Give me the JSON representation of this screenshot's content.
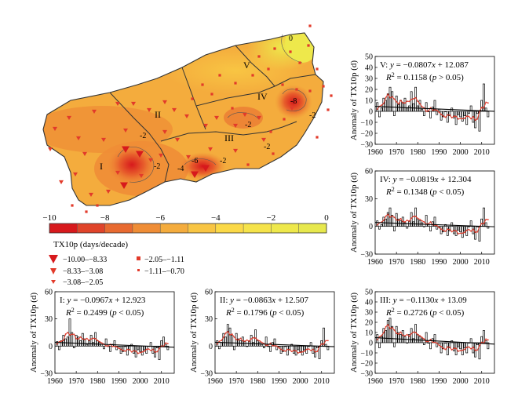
{
  "map": {
    "region_labels": [
      "I",
      "II",
      "III",
      "IV",
      "V"
    ],
    "contour_labels": [
      "0",
      "-2",
      "-2",
      "-2",
      "-2",
      "-2",
      "-4",
      "-6",
      "-8",
      "-2"
    ]
  },
  "colorbar": {
    "ticks": [
      "−10",
      "−8",
      "−6",
      "−4",
      "−2",
      "0"
    ],
    "label": "TX10p (days/decade)",
    "colors": [
      "#d7191c",
      "#e0442a",
      "#e86a30",
      "#ef8d36",
      "#f4ac3d",
      "#f8c543",
      "#fbd947",
      "#f5e34a",
      "#eee84b",
      "#e7e84d"
    ]
  },
  "legend": {
    "items": [
      {
        "label": "−10.00–−8.33",
        "marker": "triangle-large-icon"
      },
      {
        "label": "−2.05–−1.11",
        "marker": "square-large-icon"
      },
      {
        "label": "−8.33–−3.08",
        "marker": "triangle-medium-icon"
      },
      {
        "label": "−1.11–−0.70",
        "marker": "square-small-icon"
      },
      {
        "label": "−3.08–−2.05",
        "marker": "triangle-small-icon"
      }
    ]
  },
  "colors": {
    "bar_stroke": "#000000",
    "trend": "#000000",
    "smooth": "#e23a2a",
    "station": "#e23a2a"
  },
  "chart_data": [
    {
      "id": "V",
      "type": "bar",
      "ylabel": "Anomaly of TX10p (d)",
      "equation": "V: y = −0.0807x + 12.087",
      "r2": "R² = 0.1158 (p > 0.05)",
      "eq_parts": [
        "V: ",
        "y",
        " = −0.0807",
        "x",
        " + 12.087"
      ],
      "r2_parts": [
        "R",
        "2",
        " = 0.1158 (",
        "p",
        " > 0.05)"
      ],
      "yticks": [
        "−30",
        "−20",
        "−10",
        "0",
        "10",
        "20",
        "30",
        "40",
        "50"
      ],
      "ytick_values": [
        -30,
        -20,
        -10,
        0,
        10,
        20,
        30,
        40,
        50
      ],
      "xticks": [
        "1960",
        "1970",
        "1980",
        "1990",
        "2000",
        "2010"
      ],
      "xtick_values": [
        1960,
        1970,
        1980,
        1990,
        2000,
        2010
      ],
      "ylim": [
        -30,
        50
      ],
      "xlim": [
        1960,
        2016
      ],
      "slope": -0.0807,
      "intercept": 12.087,
      "years": [
        1961,
        2013
      ],
      "values": [
        8,
        -5,
        3,
        12,
        10,
        16,
        22,
        18,
        -4,
        14,
        6,
        10,
        8,
        12,
        3,
        5,
        18,
        7,
        22,
        5,
        10,
        2,
        -4,
        8,
        0,
        -6,
        4,
        10,
        -3,
        2,
        -8,
        -5,
        0,
        -10,
        -4,
        3,
        -6,
        -12,
        -3,
        -5,
        -9,
        -4,
        -12,
        -2,
        5,
        -10,
        -15,
        -2,
        -18,
        10,
        25,
        3,
        -5
      ]
    },
    {
      "id": "IV",
      "type": "bar",
      "ylabel": "Anomaly of TX10p (d)",
      "equation": "IV: y = −0.0819x + 12.304",
      "r2": "R² = 0.1348 (p < 0.05)",
      "eq_parts": [
        "IV: ",
        "y",
        " = −0.0819",
        "x",
        " + 12.304"
      ],
      "r2_parts": [
        "R",
        "2",
        " = 0.1348 (",
        "p",
        " < 0.05)"
      ],
      "yticks": [
        "−30",
        "0",
        "30",
        "60"
      ],
      "ytick_values": [
        -30,
        0,
        30,
        60
      ],
      "xticks": [
        "1960",
        "1970",
        "1980",
        "1990",
        "2000",
        "2010"
      ],
      "xtick_values": [
        1960,
        1970,
        1980,
        1990,
        2000,
        2010
      ],
      "ylim": [
        -30,
        60
      ],
      "xlim": [
        1960,
        2016
      ],
      "slope": -0.0819,
      "intercept": 12.304,
      "years": [
        1961,
        2013
      ],
      "values": [
        6,
        -3,
        2,
        10,
        8,
        15,
        20,
        12,
        -5,
        14,
        8,
        6,
        10,
        4,
        -2,
        6,
        15,
        5,
        20,
        8,
        6,
        4,
        0,
        12,
        2,
        -5,
        5,
        10,
        -3,
        0,
        -8,
        -6,
        2,
        -10,
        -5,
        4,
        -8,
        -10,
        -4,
        -6,
        -12,
        -5,
        -10,
        0,
        6,
        -8,
        -14,
        0,
        -16,
        8,
        20,
        4,
        -2
      ]
    },
    {
      "id": "I",
      "type": "bar",
      "ylabel": "Anomaly of TX10p (d)",
      "equation": "I: y = −0.0967x + 12.923",
      "r2": "R² = 0.2499 (p < 0.05)",
      "eq_parts": [
        "I: ",
        "y",
        " = −0.0967",
        "x",
        " + 12.923"
      ],
      "r2_parts": [
        "R",
        "2",
        " = 0.2499 (",
        "p",
        " < 0.05)"
      ],
      "yticks": [
        "−30",
        "0",
        "30",
        "60"
      ],
      "ytick_values": [
        -30,
        0,
        30,
        60
      ],
      "xticks": [
        "1960",
        "1970",
        "1980",
        "1990",
        "2000",
        "2010"
      ],
      "xtick_values": [
        1960,
        1970,
        1980,
        1990,
        2000,
        2010
      ],
      "ylim": [
        -30,
        60
      ],
      "xlim": [
        1960,
        2016
      ],
      "slope": -0.0967,
      "intercept": 12.923,
      "years": [
        1961,
        2013
      ],
      "values": [
        5,
        -4,
        6,
        12,
        8,
        10,
        30,
        15,
        -2,
        12,
        10,
        6,
        14,
        8,
        2,
        6,
        12,
        4,
        15,
        6,
        4,
        2,
        -3,
        8,
        0,
        -6,
        2,
        6,
        -4,
        0,
        -8,
        -6,
        0,
        -10,
        -4,
        2,
        -8,
        -12,
        -4,
        -6,
        -10,
        -4,
        -8,
        0,
        4,
        -8,
        -12,
        -2,
        -15,
        6,
        10,
        2,
        -4
      ]
    },
    {
      "id": "II",
      "type": "bar",
      "ylabel": "Anomaly of TX10p (d)",
      "equation": "II: y = −0.0863x + 12.507",
      "r2": "R² = 0.1796 (p < 0.05)",
      "eq_parts": [
        "II: ",
        "y",
        " = −0.0863",
        "x",
        " + 12.507"
      ],
      "r2_parts": [
        "R",
        "2",
        " = 0.1796 (",
        "p",
        " < 0.05)"
      ],
      "yticks": [
        "−30",
        "0",
        "30",
        "60"
      ],
      "ytick_values": [
        -30,
        0,
        30,
        60
      ],
      "xticks": [
        "1960",
        "1970",
        "1980",
        "1990",
        "2000",
        "2010"
      ],
      "xtick_values": [
        1960,
        1970,
        1980,
        1990,
        2000,
        2010
      ],
      "ylim": [
        -30,
        60
      ],
      "xlim": [
        1960,
        2016
      ],
      "slope": -0.0863,
      "intercept": 12.507,
      "years": [
        1961,
        2013
      ],
      "values": [
        6,
        -3,
        4,
        14,
        10,
        24,
        20,
        12,
        -4,
        14,
        8,
        6,
        10,
        5,
        0,
        6,
        12,
        4,
        18,
        6,
        4,
        2,
        -2,
        10,
        0,
        -6,
        4,
        8,
        -4,
        0,
        -8,
        -6,
        0,
        -10,
        -4,
        2,
        -8,
        -10,
        -4,
        -6,
        -10,
        -4,
        -8,
        0,
        4,
        -8,
        -12,
        -2,
        -14,
        6,
        20,
        2,
        -4
      ]
    },
    {
      "id": "III",
      "type": "bar",
      "ylabel": "Anomaly of TX10p (d)",
      "equation": "III: y = −0.1130x + 13.09",
      "r2": "R² = 0.2726 (p < 0.05)",
      "eq_parts": [
        "III: ",
        "y",
        " = −0.1130",
        "x",
        " + 13.09"
      ],
      "r2_parts": [
        "R",
        "2",
        " = 0.2726 (",
        "p",
        " < 0.05)"
      ],
      "yticks": [
        "−30",
        "−20",
        "−10",
        "0",
        "10",
        "20",
        "30",
        "40",
        "50"
      ],
      "ytick_values": [
        -30,
        -20,
        -10,
        0,
        10,
        20,
        30,
        40,
        50
      ],
      "xticks": [
        "1960",
        "1970",
        "1980",
        "1990",
        "2000",
        "2010"
      ],
      "xtick_values": [
        1960,
        1970,
        1980,
        1990,
        2000,
        2010
      ],
      "ylim": [
        -30,
        50
      ],
      "xlim": [
        1960,
        2016
      ],
      "slope": -0.113,
      "intercept": 13.09,
      "years": [
        1961,
        2013
      ],
      "values": [
        8,
        -5,
        6,
        14,
        12,
        22,
        24,
        16,
        -4,
        16,
        10,
        8,
        12,
        6,
        0,
        8,
        14,
        4,
        18,
        8,
        6,
        4,
        -2,
        10,
        0,
        -6,
        4,
        8,
        -4,
        0,
        -10,
        -6,
        0,
        -12,
        -5,
        2,
        -8,
        -12,
        -4,
        -6,
        -12,
        -5,
        -10,
        0,
        4,
        -10,
        -14,
        -2,
        -16,
        6,
        12,
        2,
        -6
      ]
    }
  ]
}
